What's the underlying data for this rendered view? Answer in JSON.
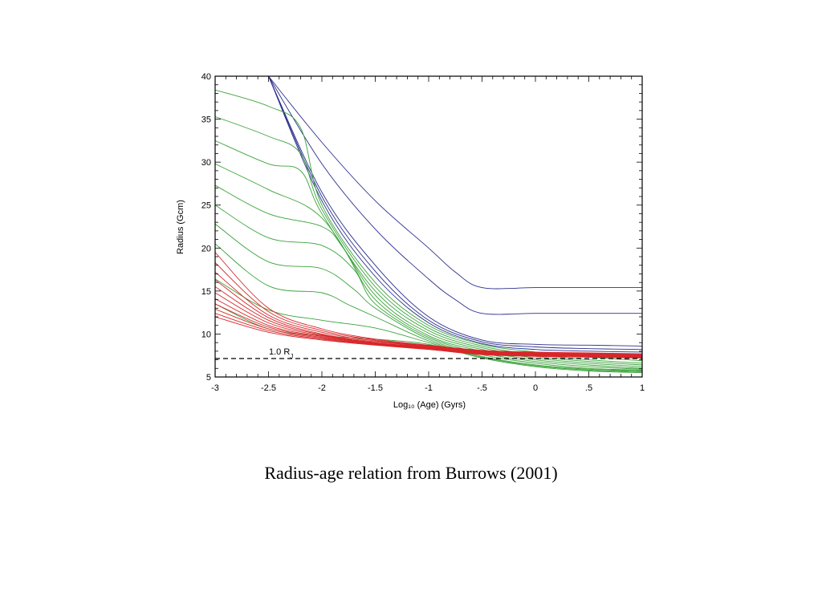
{
  "caption": "Radius-age relation from Burrows (2001)",
  "chart_data": {
    "type": "line",
    "xlabel": "Log₁₀ (Age) (Gyrs)",
    "ylabel": "Radius (Gcm)",
    "xlim": [
      -3,
      1
    ],
    "ylim": [
      5,
      40
    ],
    "x_ticks": [
      {
        "value": -3,
        "label": "-3"
      },
      {
        "value": -2.5,
        "label": "-2.5"
      },
      {
        "value": -2,
        "label": "-2"
      },
      {
        "value": -1.5,
        "label": "-1.5"
      },
      {
        "value": -1,
        "label": "-1"
      },
      {
        "value": -0.5,
        "label": "-.5"
      },
      {
        "value": 0,
        "label": "0"
      },
      {
        "value": 0.5,
        "label": ".5"
      },
      {
        "value": 1,
        "label": "1"
      }
    ],
    "y_ticks": [
      {
        "value": 5,
        "label": "5"
      },
      {
        "value": 10,
        "label": "10"
      },
      {
        "value": 15,
        "label": "15"
      },
      {
        "value": 20,
        "label": "20"
      },
      {
        "value": 25,
        "label": "25"
      },
      {
        "value": 30,
        "label": "30"
      },
      {
        "value": 35,
        "label": "35"
      },
      {
        "value": 40,
        "label": "40"
      }
    ],
    "grid": false,
    "reference_line": {
      "y": 7.15,
      "style": "dashed",
      "label": "1.0 RJ"
    },
    "colors": {
      "blue": "#2b2f8c",
      "green": "#3aa33a",
      "red": "#d8262a",
      "black": "#000000"
    },
    "series": [
      {
        "color": "blue",
        "points": [
          [
            -2.5,
            40
          ],
          [
            -2,
            32.3
          ],
          [
            -1.5,
            25.5
          ],
          [
            -1,
            20.0
          ],
          [
            -0.75,
            17.2
          ],
          [
            -0.5,
            15.4
          ],
          [
            0,
            15.4
          ],
          [
            0.5,
            15.4
          ],
          [
            1,
            15.4
          ]
        ]
      },
      {
        "color": "blue",
        "points": [
          [
            -2.5,
            40
          ],
          [
            -2,
            29.8
          ],
          [
            -1.5,
            22.2
          ],
          [
            -1,
            16.4
          ],
          [
            -0.75,
            14.0
          ],
          [
            -0.5,
            12.4
          ],
          [
            0,
            12.4
          ],
          [
            0.5,
            12.4
          ],
          [
            1,
            12.4
          ]
        ]
      },
      {
        "color": "blue",
        "points": [
          [
            -2.5,
            40
          ],
          [
            -2,
            26.5
          ],
          [
            -1.5,
            18.0
          ],
          [
            -1,
            12.0
          ],
          [
            -0.5,
            9.3
          ],
          [
            0,
            8.8
          ],
          [
            0.5,
            8.7
          ],
          [
            1,
            8.6
          ]
        ]
      },
      {
        "color": "blue",
        "points": [
          [
            -2.5,
            40
          ],
          [
            -2,
            26.0
          ],
          [
            -1.5,
            17.3
          ],
          [
            -1,
            11.6
          ],
          [
            -0.5,
            9.1
          ],
          [
            0,
            8.5
          ],
          [
            0.5,
            8.3
          ],
          [
            1,
            8.2
          ]
        ]
      },
      {
        "color": "blue",
        "points": [
          [
            -2.5,
            40
          ],
          [
            -2,
            25.5
          ],
          [
            -1.5,
            16.7
          ],
          [
            -1,
            11.3
          ],
          [
            -0.5,
            8.9
          ],
          [
            0,
            8.2
          ],
          [
            0.5,
            8.0
          ],
          [
            1,
            7.9
          ]
        ]
      },
      {
        "color": "green",
        "points": [
          [
            -3,
            38.4
          ],
          [
            -2.5,
            36.5
          ],
          [
            -2.2,
            34.0
          ],
          [
            -2,
            25.0
          ],
          [
            -1.5,
            16.0
          ],
          [
            -1,
            11.0
          ],
          [
            -0.5,
            8.8
          ],
          [
            0,
            7.9
          ],
          [
            0.5,
            7.3
          ],
          [
            1,
            6.9
          ]
        ]
      },
      {
        "color": "green",
        "points": [
          [
            -3,
            35.3
          ],
          [
            -2.5,
            33.0
          ],
          [
            -2.2,
            31.0
          ],
          [
            -2,
            24.5
          ],
          [
            -1.5,
            15.5
          ],
          [
            -1,
            10.7
          ],
          [
            -0.5,
            8.6
          ],
          [
            0,
            7.6
          ],
          [
            0.5,
            7.0
          ],
          [
            1,
            6.6
          ]
        ]
      },
      {
        "color": "green",
        "points": [
          [
            -3,
            32.5
          ],
          [
            -2.5,
            29.8
          ],
          [
            -2.2,
            29.0
          ],
          [
            -2,
            24.0
          ],
          [
            -1.5,
            15.0
          ],
          [
            -1,
            10.4
          ],
          [
            -0.5,
            8.4
          ],
          [
            0,
            7.4
          ],
          [
            0.5,
            6.8
          ],
          [
            1,
            6.4
          ]
        ]
      },
      {
        "color": "green",
        "points": [
          [
            -3,
            29.8
          ],
          [
            -2.5,
            26.8
          ],
          [
            -2,
            23.5
          ],
          [
            -1.5,
            14.5
          ],
          [
            -1,
            10.1
          ],
          [
            -0.5,
            8.2
          ],
          [
            0,
            7.2
          ],
          [
            0.5,
            6.6
          ],
          [
            1,
            6.2
          ]
        ]
      },
      {
        "color": "green",
        "points": [
          [
            -3,
            27.3
          ],
          [
            -2.5,
            24.0
          ],
          [
            -2,
            22.5
          ],
          [
            -1.8,
            20.0
          ],
          [
            -1.5,
            14.0
          ],
          [
            -1,
            9.8
          ],
          [
            -0.5,
            8.0
          ],
          [
            0,
            7.0
          ],
          [
            0.5,
            6.4
          ],
          [
            1,
            6.0
          ]
        ]
      },
      {
        "color": "green",
        "points": [
          [
            -3,
            25.0
          ],
          [
            -2.5,
            21.2
          ],
          [
            -2,
            20.3
          ],
          [
            -1.7,
            17.5
          ],
          [
            -1.5,
            13.5
          ],
          [
            -1,
            9.6
          ],
          [
            -0.5,
            7.8
          ],
          [
            0,
            6.8
          ],
          [
            0.5,
            6.2
          ],
          [
            1,
            5.9
          ]
        ]
      },
      {
        "color": "green",
        "points": [
          [
            -3,
            22.8
          ],
          [
            -2.5,
            18.4
          ],
          [
            -2,
            17.6
          ],
          [
            -1.7,
            15.2
          ],
          [
            -1.5,
            13.0
          ],
          [
            -1,
            9.4
          ],
          [
            -0.5,
            7.6
          ],
          [
            0,
            6.6
          ],
          [
            0.5,
            6.0
          ],
          [
            1,
            5.8
          ]
        ]
      },
      {
        "color": "green",
        "points": [
          [
            -3,
            20.5
          ],
          [
            -2.5,
            15.6
          ],
          [
            -2,
            14.8
          ],
          [
            -1.75,
            13.4
          ],
          [
            -1.5,
            12.0
          ],
          [
            -1,
            9.2
          ],
          [
            -0.5,
            7.4
          ],
          [
            0,
            6.4
          ],
          [
            0.5,
            5.9
          ],
          [
            1,
            5.7
          ]
        ]
      },
      {
        "color": "green",
        "points": [
          [
            -3,
            16.4
          ],
          [
            -2.5,
            12.8
          ],
          [
            -2,
            11.6
          ],
          [
            -1.5,
            10.7
          ],
          [
            -1,
            9.0
          ],
          [
            -0.5,
            7.3
          ],
          [
            0,
            6.3
          ],
          [
            0.5,
            5.8
          ],
          [
            1,
            5.6
          ]
        ]
      },
      {
        "color": "green",
        "points": [
          [
            -3,
            13.5
          ],
          [
            -2.5,
            10.6
          ],
          [
            -2,
            9.8
          ],
          [
            -1.5,
            9.4
          ],
          [
            -1,
            8.8
          ],
          [
            -0.5,
            7.2
          ],
          [
            0,
            6.2
          ],
          [
            0.5,
            5.7
          ],
          [
            1,
            5.5
          ]
        ]
      },
      {
        "color": "red",
        "points": [
          [
            -3,
            19.5
          ],
          [
            -2.5,
            13.0
          ],
          [
            -2,
            10.6
          ],
          [
            -1.5,
            9.4
          ],
          [
            -1,
            8.7
          ],
          [
            -0.5,
            8.1
          ],
          [
            0,
            7.9
          ],
          [
            0.5,
            7.8
          ],
          [
            1,
            7.7
          ]
        ]
      },
      {
        "color": "red",
        "points": [
          [
            -3,
            18.3
          ],
          [
            -2.5,
            12.6
          ],
          [
            -2,
            10.4
          ],
          [
            -1.5,
            9.3
          ],
          [
            -1,
            8.65
          ],
          [
            -0.5,
            8.05
          ],
          [
            0,
            7.85
          ],
          [
            0.5,
            7.75
          ],
          [
            1,
            7.65
          ]
        ]
      },
      {
        "color": "red",
        "points": [
          [
            -3,
            17.2
          ],
          [
            -2.5,
            12.2
          ],
          [
            -2,
            10.2
          ],
          [
            -1.5,
            9.2
          ],
          [
            -1,
            8.6
          ],
          [
            -0.5,
            8.0
          ],
          [
            0,
            7.8
          ],
          [
            0.5,
            7.7
          ],
          [
            1,
            7.6
          ]
        ]
      },
      {
        "color": "red",
        "points": [
          [
            -3,
            16.3
          ],
          [
            -2.5,
            11.9
          ],
          [
            -2,
            10.0
          ],
          [
            -1.5,
            9.1
          ],
          [
            -1,
            8.55
          ],
          [
            -0.5,
            7.95
          ],
          [
            0,
            7.75
          ],
          [
            0.5,
            7.65
          ],
          [
            1,
            7.55
          ]
        ]
      },
      {
        "color": "red",
        "points": [
          [
            -3,
            15.5
          ],
          [
            -2.5,
            11.6
          ],
          [
            -2,
            9.9
          ],
          [
            -1.5,
            9.0
          ],
          [
            -1,
            8.5
          ],
          [
            -0.5,
            7.9
          ],
          [
            0,
            7.7
          ],
          [
            0.5,
            7.6
          ],
          [
            1,
            7.5
          ]
        ]
      },
      {
        "color": "red",
        "points": [
          [
            -3,
            14.8
          ],
          [
            -2.5,
            11.3
          ],
          [
            -2,
            9.8
          ],
          [
            -1.5,
            8.95
          ],
          [
            -1,
            8.45
          ],
          [
            -0.5,
            7.85
          ],
          [
            0,
            7.65
          ],
          [
            0.5,
            7.55
          ],
          [
            1,
            7.45
          ]
        ]
      },
      {
        "color": "red",
        "points": [
          [
            -3,
            14.1
          ],
          [
            -2.5,
            11.0
          ],
          [
            -2,
            9.7
          ],
          [
            -1.5,
            8.9
          ],
          [
            -1,
            8.4
          ],
          [
            -0.5,
            7.8
          ],
          [
            0,
            7.6
          ],
          [
            0.5,
            7.5
          ],
          [
            1,
            7.4
          ]
        ]
      },
      {
        "color": "red",
        "points": [
          [
            -3,
            13.5
          ],
          [
            -2.5,
            10.8
          ],
          [
            -2,
            9.6
          ],
          [
            -1.5,
            8.85
          ],
          [
            -1,
            8.35
          ],
          [
            -0.5,
            7.75
          ],
          [
            0,
            7.55
          ],
          [
            0.5,
            7.45
          ],
          [
            1,
            7.35
          ]
        ]
      },
      {
        "color": "red",
        "points": [
          [
            -3,
            12.9
          ],
          [
            -2.5,
            10.6
          ],
          [
            -2,
            9.5
          ],
          [
            -1.5,
            8.8
          ],
          [
            -1,
            8.3
          ],
          [
            -0.5,
            7.7
          ],
          [
            0,
            7.5
          ],
          [
            0.5,
            7.4
          ],
          [
            1,
            7.3
          ]
        ]
      },
      {
        "color": "red",
        "points": [
          [
            -3,
            12.4
          ],
          [
            -2.5,
            10.4
          ],
          [
            -2,
            9.4
          ],
          [
            -1.5,
            8.75
          ],
          [
            -1,
            8.25
          ],
          [
            -0.5,
            7.65
          ],
          [
            0,
            7.45
          ],
          [
            0.5,
            7.35
          ],
          [
            1,
            7.25
          ]
        ]
      },
      {
        "color": "red",
        "points": [
          [
            -3,
            12.0
          ],
          [
            -2.5,
            10.2
          ],
          [
            -2,
            9.3
          ],
          [
            -1.5,
            8.7
          ],
          [
            -1,
            8.2
          ],
          [
            -0.5,
            7.6
          ],
          [
            0,
            7.4
          ],
          [
            0.5,
            7.3
          ],
          [
            1,
            7.2
          ]
        ]
      }
    ]
  }
}
